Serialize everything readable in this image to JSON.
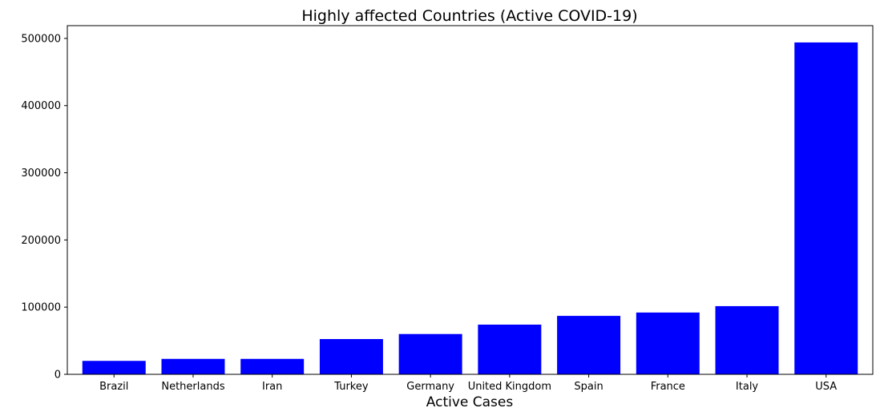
{
  "chart_data": {
    "type": "bar",
    "title": "Highly affected Countries (Active COVID-19)",
    "xlabel": "Active Cases",
    "ylabel": "",
    "categories": [
      "Brazil",
      "Netherlands",
      "Iran",
      "Turkey",
      "Germany",
      "United Kingdom",
      "Spain",
      "France",
      "Italy",
      "USA"
    ],
    "values": [
      20000,
      23000,
      23000,
      52500,
      60000,
      74000,
      87000,
      92000,
      101500,
      494000
    ],
    "ylim": [
      0,
      519000
    ],
    "yticks": [
      0,
      100000,
      200000,
      300000,
      400000,
      500000
    ],
    "bar_color": "#0000ff",
    "grid": false,
    "legend": false
  }
}
